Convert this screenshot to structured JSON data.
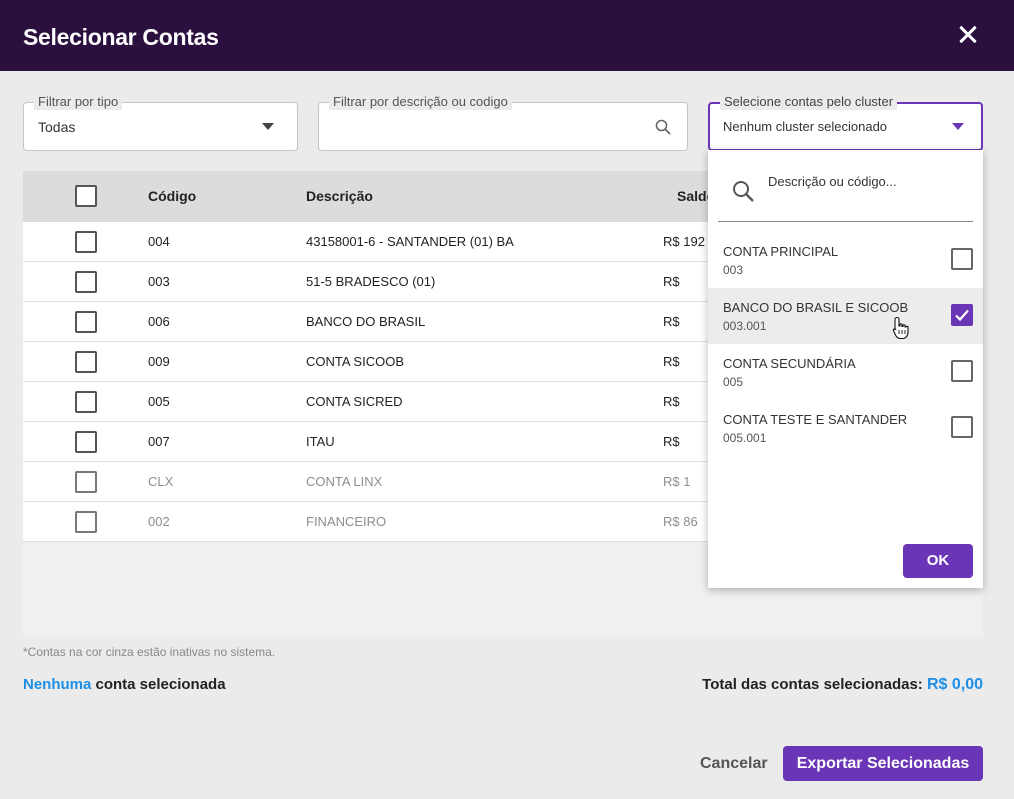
{
  "header": {
    "title": "Selecionar Contas",
    "close_icon": "close-icon"
  },
  "filters": {
    "tipo": {
      "label": "Filtrar por tipo",
      "value": "Todas"
    },
    "descricao": {
      "label": "Filtrar por descrição ou codigo",
      "value": ""
    },
    "cluster": {
      "label": "Selecione contas pelo cluster",
      "value": "Nenhum cluster selecionado"
    }
  },
  "table": {
    "headers": {
      "codigo": "Código",
      "descricao": "Descrição",
      "saldo": "Saldo"
    },
    "rows": [
      {
        "codigo": "004",
        "descricao": "43158001-6 - SANTANDER (01) BA",
        "saldo": "R$ 192",
        "inactive": false
      },
      {
        "codigo": "003",
        "descricao": "51-5 BRADESCO (01)",
        "saldo": "R$",
        "inactive": false
      },
      {
        "codigo": "006",
        "descricao": "BANCO DO BRASIL",
        "saldo": "R$",
        "inactive": false
      },
      {
        "codigo": "009",
        "descricao": "CONTA SICOOB",
        "saldo": "R$",
        "inactive": false
      },
      {
        "codigo": "005",
        "descricao": "CONTA SICRED",
        "saldo": "R$",
        "inactive": false
      },
      {
        "codigo": "007",
        "descricao": "ITAU",
        "saldo": "R$",
        "inactive": false
      },
      {
        "codigo": "CLX",
        "descricao": "CONTA LINX",
        "saldo": "R$ 1",
        "inactive": true
      },
      {
        "codigo": "002",
        "descricao": "FINANCEIRO",
        "saldo": "R$ 86",
        "inactive": true
      }
    ]
  },
  "footer": {
    "note": "*Contas na cor cinza estão inativas no sistema.",
    "selected_highlight": "Nenhuma",
    "selected_text": " conta selecionada",
    "total_label": "Total das contas selecionadas: ",
    "total_value": "R$ 0,00",
    "cancel_label": "Cancelar",
    "export_label": "Exportar Selecionadas"
  },
  "dropdown": {
    "search_placeholder": "Descrição ou código...",
    "items": [
      {
        "name": "CONTA PRINCIPAL",
        "code": "003",
        "checked": false
      },
      {
        "name": "BANCO DO BRASIL E SICOOB",
        "code": "003.001",
        "checked": true
      },
      {
        "name": "CONTA SECUNDÁRIA",
        "code": "005",
        "checked": false
      },
      {
        "name": "CONTA TESTE E SANTANDER",
        "code": "005.001",
        "checked": false
      }
    ],
    "ok_label": "OK"
  },
  "colors": {
    "header_bg": "#2b0f3f",
    "accent": "#6a35b6",
    "highlight_blue": "#1e8fe6"
  }
}
